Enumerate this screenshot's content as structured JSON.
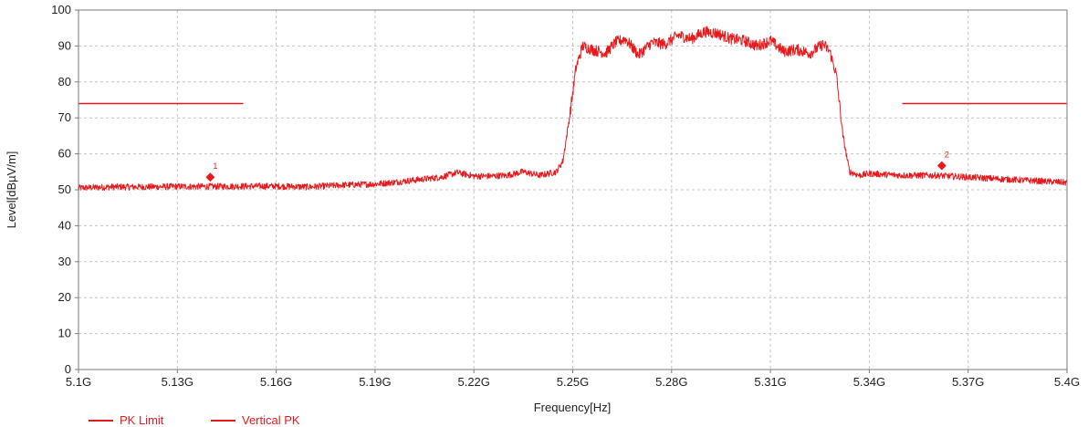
{
  "chart_data": {
    "type": "line",
    "title": "",
    "xlabel": "Frequency[Hz]",
    "ylabel": "Level[dBµV/m]",
    "xlim": [
      5.1,
      5.4
    ],
    "ylim": [
      0,
      100
    ],
    "x_unit": "GHz",
    "grid": true,
    "legend_position": "bottom-left",
    "x_ticks": [
      5.1,
      5.13,
      5.16,
      5.19,
      5.22,
      5.25,
      5.28,
      5.31,
      5.34,
      5.37,
      5.4
    ],
    "x_tick_labels": [
      "5.1G",
      "5.13G",
      "5.16G",
      "5.19G",
      "5.22G",
      "5.25G",
      "5.28G",
      "5.31G",
      "5.34G",
      "5.37G",
      "5.4G"
    ],
    "y_ticks": [
      0,
      10,
      20,
      30,
      40,
      50,
      60,
      70,
      80,
      90,
      100
    ],
    "y_tick_labels": [
      "0",
      "10",
      "20",
      "30",
      "40",
      "50",
      "60",
      "70",
      "80",
      "90",
      "100"
    ],
    "series": [
      {
        "name": "PK Limit",
        "color": "#e8191c",
        "segments": [
          {
            "x": [
              5.1,
              5.15
            ],
            "y": [
              74,
              74
            ]
          },
          {
            "x": [
              5.35,
              5.4
            ],
            "y": [
              74,
              74
            ]
          }
        ]
      },
      {
        "name": "Vertical PK",
        "color": "#e8191c",
        "x": [
          5.1,
          5.11,
          5.12,
          5.13,
          5.14,
          5.15,
          5.16,
          5.17,
          5.18,
          5.19,
          5.195,
          5.2,
          5.205,
          5.21,
          5.215,
          5.22,
          5.225,
          5.23,
          5.235,
          5.24,
          5.245,
          5.247,
          5.249,
          5.251,
          5.253,
          5.256,
          5.26,
          5.263,
          5.266,
          5.27,
          5.274,
          5.278,
          5.282,
          5.286,
          5.29,
          5.294,
          5.298,
          5.302,
          5.306,
          5.31,
          5.314,
          5.318,
          5.322,
          5.326,
          5.328,
          5.33,
          5.332,
          5.334,
          5.337,
          5.34,
          5.35,
          5.36,
          5.37,
          5.38,
          5.39,
          5.4
        ],
        "y": [
          50.5,
          50.8,
          50.8,
          50.9,
          50.9,
          51.0,
          51.0,
          50.8,
          51.3,
          51.6,
          52.0,
          52.5,
          53.0,
          53.5,
          54.8,
          53.8,
          53.8,
          54.0,
          55.0,
          54.0,
          55.0,
          58.0,
          70.0,
          84.0,
          90.0,
          89.0,
          88.0,
          91.0,
          92.0,
          87.5,
          91.0,
          90.5,
          93.0,
          92.0,
          94.0,
          93.5,
          92.0,
          91.5,
          90.0,
          91.5,
          88.5,
          89.0,
          88.0,
          90.5,
          88.5,
          82.0,
          65.0,
          55.0,
          54.0,
          54.5,
          54.0,
          54.0,
          53.5,
          53.0,
          52.5,
          52.0
        ]
      }
    ],
    "markers": [
      {
        "label": "1",
        "x": 5.14,
        "y": 53.5
      },
      {
        "label": "2",
        "x": 5.362,
        "y": 56.7
      }
    ]
  }
}
